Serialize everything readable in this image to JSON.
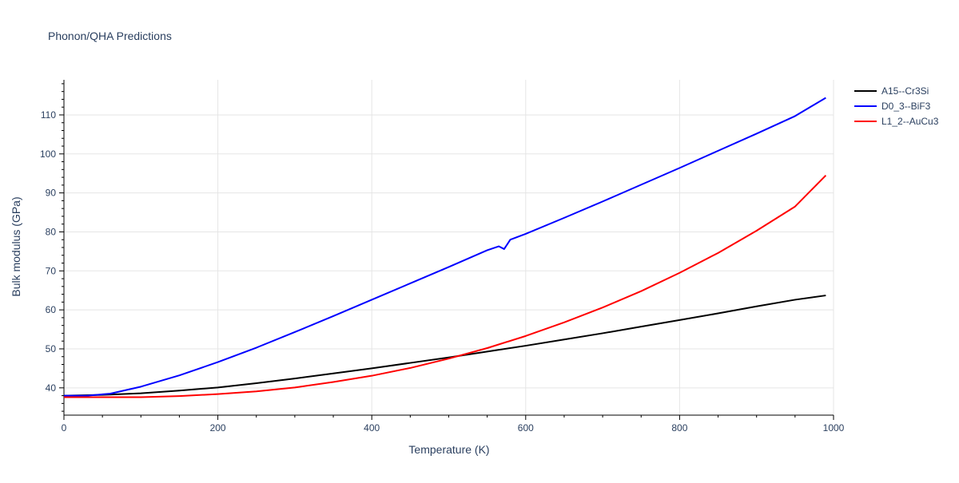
{
  "chart_data": {
    "type": "line",
    "title": "Phonon/QHA Predictions",
    "xlabel": "Temperature (K)",
    "ylabel": "Bulk modulus (GPa)",
    "xlim": [
      0,
      1000
    ],
    "ylim": [
      33,
      119
    ],
    "x_ticks": [
      0,
      200,
      400,
      600,
      800,
      1000
    ],
    "y_ticks": [
      40,
      50,
      60,
      70,
      80,
      90,
      100,
      110
    ],
    "grid": true,
    "legend_position": "top-right",
    "series": [
      {
        "name": "A15--Cr3Si",
        "color": "#000000",
        "x": [
          0,
          50,
          100,
          150,
          200,
          250,
          300,
          350,
          400,
          450,
          500,
          550,
          600,
          650,
          700,
          750,
          800,
          850,
          900,
          950,
          990
        ],
        "y": [
          38.0,
          38.2,
          38.6,
          39.3,
          40.1,
          41.2,
          42.4,
          43.7,
          45.0,
          46.4,
          47.8,
          49.3,
          50.8,
          52.4,
          54.0,
          55.7,
          57.4,
          59.1,
          60.9,
          62.6,
          63.7
        ]
      },
      {
        "name": "D0_3--BiF3",
        "color": "#0000ff",
        "x": [
          0,
          30,
          60,
          100,
          150,
          200,
          250,
          300,
          350,
          400,
          450,
          500,
          550,
          565,
          572,
          580,
          600,
          650,
          700,
          750,
          800,
          850,
          900,
          950,
          990
        ],
        "y": [
          38.0,
          38.0,
          38.5,
          40.3,
          43.2,
          46.6,
          50.3,
          54.3,
          58.4,
          62.6,
          66.8,
          71.0,
          75.3,
          76.3,
          75.6,
          78.0,
          79.5,
          83.6,
          87.8,
          92.1,
          96.4,
          100.8,
          105.2,
          109.7,
          114.4
        ]
      },
      {
        "name": "L1_2--AuCu3",
        "color": "#ff0000",
        "x": [
          0,
          50,
          100,
          150,
          200,
          250,
          300,
          350,
          400,
          450,
          500,
          550,
          600,
          650,
          700,
          750,
          800,
          850,
          900,
          950,
          990
        ],
        "y": [
          37.6,
          37.6,
          37.6,
          37.9,
          38.4,
          39.1,
          40.1,
          41.5,
          43.1,
          45.1,
          47.5,
          50.2,
          53.3,
          56.8,
          60.6,
          64.8,
          69.5,
          74.6,
          80.3,
          86.5,
          94.5
        ]
      }
    ]
  }
}
